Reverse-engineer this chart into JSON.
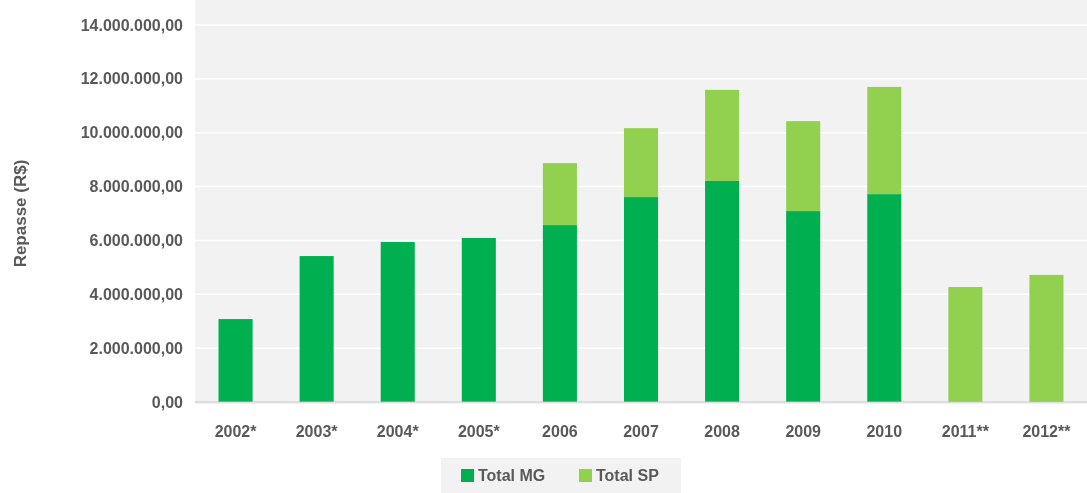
{
  "chart_data": {
    "type": "bar",
    "stacked": true,
    "ylabel": "Repasse (R$)",
    "categories": [
      "2002*",
      "2003*",
      "2004*",
      "2005*",
      "2006",
      "2007",
      "2008",
      "2009",
      "2010",
      "2011**",
      "2012**"
    ],
    "series": [
      {
        "name": "Total MG",
        "color": "#00b050",
        "values": [
          3080000,
          5420000,
          5940000,
          6090000,
          6570000,
          7610000,
          8210000,
          7090000,
          7720000,
          null,
          null
        ]
      },
      {
        "name": "Total SP",
        "color": "#92d050",
        "values": [
          null,
          null,
          null,
          null,
          2300000,
          2560000,
          3380000,
          3340000,
          3980000,
          4270000,
          4720000
        ]
      }
    ],
    "ylim": [
      0,
      14000000
    ],
    "yticks": [
      {
        "value": 0,
        "label": "0,00"
      },
      {
        "value": 2000000,
        "label": "2.000.000,00"
      },
      {
        "value": 4000000,
        "label": "4.000.000,00"
      },
      {
        "value": 6000000,
        "label": "6.000.000,00"
      },
      {
        "value": 8000000,
        "label": "8.000.000,00"
      },
      {
        "value": 10000000,
        "label": "10.000.000,00"
      },
      {
        "value": 12000000,
        "label": "12.000.000,00"
      },
      {
        "value": 14000000,
        "label": "14.000.000,00"
      }
    ],
    "grid": "y",
    "legend": "bottom"
  }
}
